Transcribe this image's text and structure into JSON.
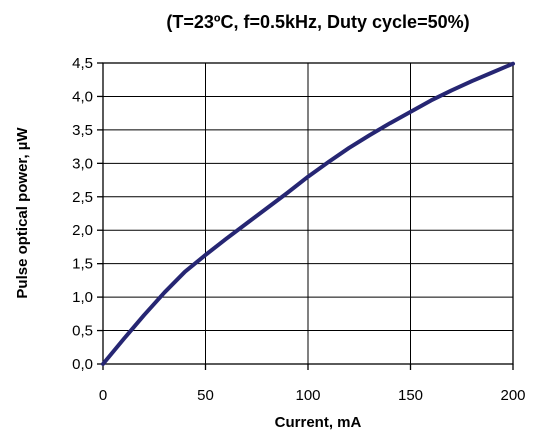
{
  "chart_data": {
    "type": "line",
    "title": "(T=23ºC,  f=0.5kHz, Duty cycle=50%)",
    "xlabel": "Current,  mA",
    "ylabel": "Pulse optical power, µW",
    "xlim": [
      0,
      200
    ],
    "ylim": [
      0,
      4.5
    ],
    "x_ticks": [
      0,
      50,
      100,
      150,
      200
    ],
    "x_tick_labels": [
      "0",
      "50",
      "100",
      "150",
      "200"
    ],
    "y_ticks": [
      0,
      0.5,
      1,
      1.5,
      2,
      2.5,
      3,
      3.5,
      4,
      4.5
    ],
    "y_tick_labels": [
      "0,0",
      "0,5",
      "1,0",
      "1,5",
      "2,0",
      "2,5",
      "3,0",
      "3,5",
      "4,0",
      "4,5"
    ],
    "grid": true,
    "line_color": "#262673",
    "series": [
      {
        "x": [
          0,
          10,
          20,
          30,
          40,
          50,
          60,
          70,
          80,
          90,
          100,
          110,
          120,
          130,
          140,
          150,
          160,
          170,
          180,
          190,
          200
        ],
        "y": [
          0,
          0.37,
          0.73,
          1.07,
          1.38,
          1.63,
          1.87,
          2.1,
          2.33,
          2.56,
          2.8,
          3.02,
          3.23,
          3.42,
          3.6,
          3.77,
          3.94,
          4.09,
          4.23,
          4.36,
          4.49
        ]
      }
    ]
  }
}
